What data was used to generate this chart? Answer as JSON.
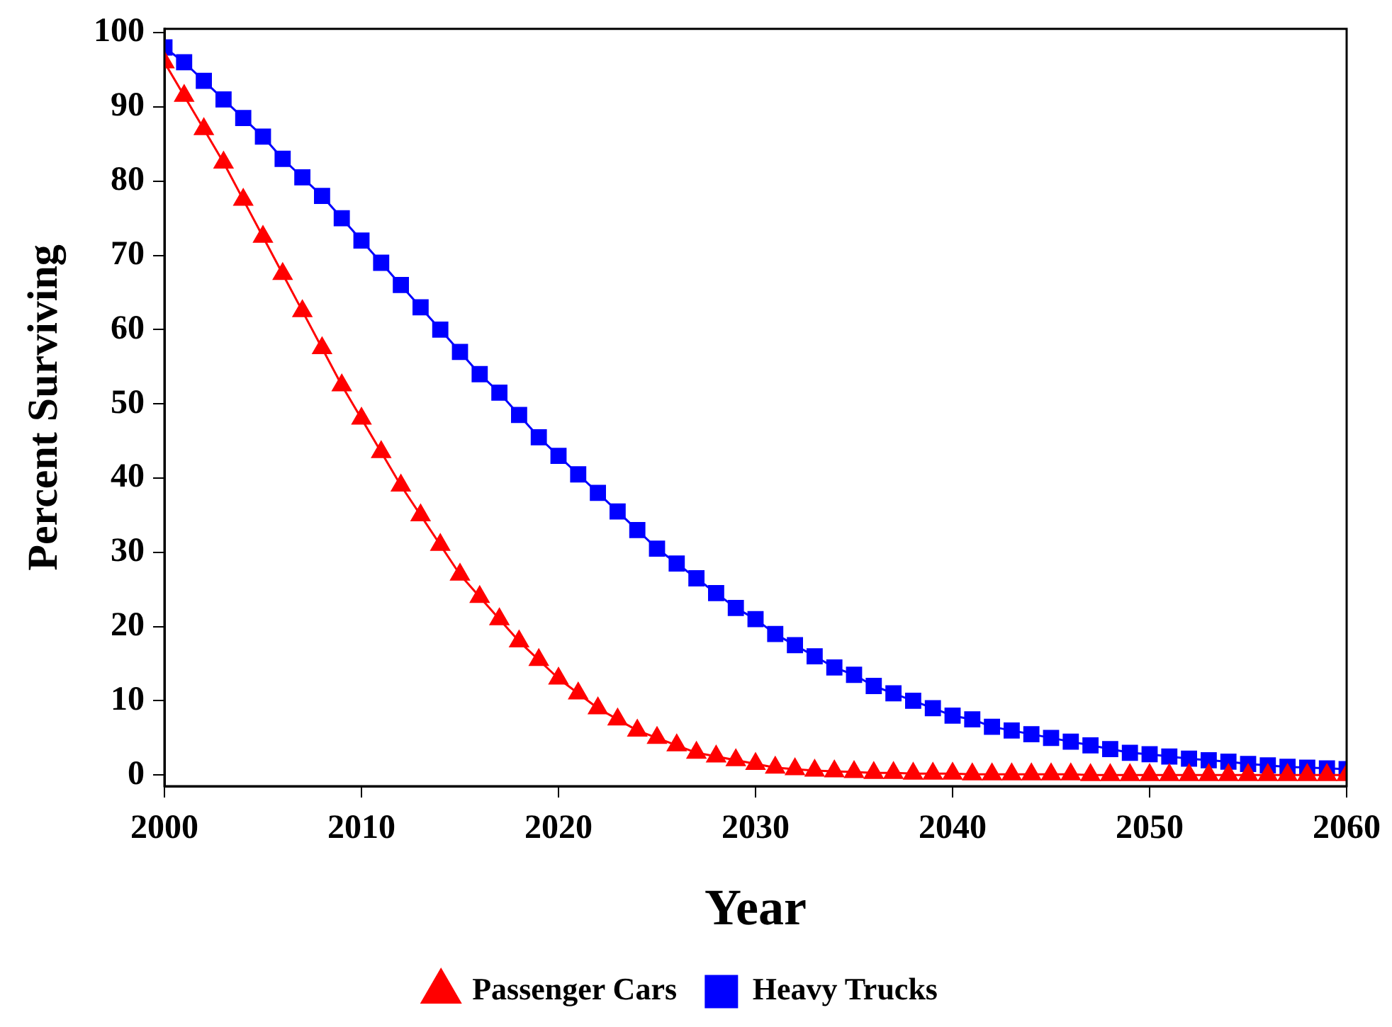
{
  "chart_data": {
    "type": "line",
    "xlabel": "Year",
    "ylabel": "Percent Surviving",
    "x": [
      2000,
      2001,
      2002,
      2003,
      2004,
      2005,
      2006,
      2007,
      2008,
      2009,
      2010,
      2011,
      2012,
      2013,
      2014,
      2015,
      2016,
      2017,
      2018,
      2019,
      2020,
      2021,
      2022,
      2023,
      2024,
      2025,
      2026,
      2027,
      2028,
      2029,
      2030,
      2031,
      2032,
      2033,
      2034,
      2035,
      2036,
      2037,
      2038,
      2039,
      2040,
      2041,
      2042,
      2043,
      2044,
      2045,
      2046,
      2047,
      2048,
      2049,
      2050,
      2051,
      2052,
      2053,
      2054,
      2055,
      2056,
      2057,
      2058,
      2059,
      2060
    ],
    "series": [
      {
        "name": "Passenger Cars",
        "color": "#ff0000",
        "marker": "triangle",
        "values": [
          96,
          91.5,
          87,
          82.5,
          77.5,
          72.5,
          67.5,
          62.5,
          57.5,
          52.5,
          48,
          43.5,
          39,
          35,
          31,
          27,
          24,
          21,
          18,
          15.5,
          13,
          11,
          9,
          7.5,
          6,
          5,
          4,
          3,
          2.5,
          2,
          1.5,
          1,
          0.8,
          0.6,
          0.5,
          0.4,
          0.3,
          0.3,
          0.2,
          0.2,
          0.2,
          0.1,
          0.1,
          0.1,
          0.1,
          0.1,
          0.1,
          0,
          0,
          0,
          0,
          0,
          0,
          0,
          0,
          0,
          0,
          0,
          0,
          0,
          0
        ]
      },
      {
        "name": "Heavy Trucks",
        "color": "#0000ff",
        "marker": "square",
        "values": [
          98,
          96,
          93.5,
          91,
          88.5,
          86,
          83,
          80.5,
          78,
          75,
          72,
          69,
          66,
          63,
          60,
          57,
          54,
          51.5,
          48.5,
          45.5,
          43,
          40.5,
          38,
          35.5,
          33,
          30.5,
          28.5,
          26.5,
          24.5,
          22.5,
          21,
          19,
          17.5,
          16,
          14.5,
          13.5,
          12,
          11,
          10,
          9,
          8,
          7.5,
          6.5,
          6,
          5.5,
          5,
          4.5,
          4,
          3.5,
          3,
          2.8,
          2.5,
          2.2,
          2,
          1.8,
          1.5,
          1.3,
          1.1,
          1,
          0.9,
          0.8
        ]
      }
    ],
    "xlim": [
      2000,
      2060
    ],
    "xticks": [
      2000,
      2010,
      2020,
      2030,
      2040,
      2050,
      2060
    ],
    "ylim": [
      -1.5,
      100.5
    ],
    "yticks": [
      0,
      10,
      20,
      30,
      40,
      50,
      60,
      70,
      80,
      90,
      100
    ],
    "grid": false,
    "legend": "bottom",
    "line_style": "solid"
  }
}
